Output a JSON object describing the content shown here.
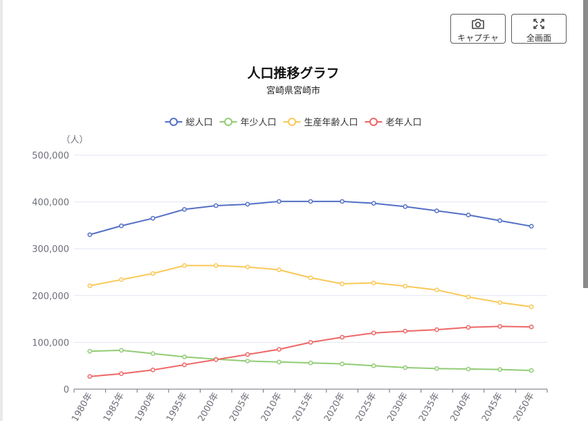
{
  "toolbar": {
    "capture_label": "キャプチャ",
    "fullscreen_label": "全画面"
  },
  "chart_data": {
    "type": "line",
    "title": "人口推移グラフ",
    "subtitle": "宮崎県宮崎市",
    "ylabel": "（人）",
    "xlabel": "",
    "ylim": [
      0,
      500000
    ],
    "yticks": [
      0,
      100000,
      200000,
      300000,
      400000,
      500000
    ],
    "ytick_labels": [
      "0",
      "100,000",
      "200,000",
      "300,000",
      "400,000",
      "500,000"
    ],
    "grid": true,
    "legend_position": "top-center",
    "categories": [
      "1980年",
      "1985年",
      "1990年",
      "1995年",
      "2000年",
      "2005年",
      "2010年",
      "2015年",
      "2020年",
      "2025年",
      "2030年",
      "2035年",
      "2040年",
      "2045年",
      "2050年"
    ],
    "series": [
      {
        "name": "総人口",
        "color": "#5470c6",
        "values": [
          330000,
          349000,
          365000,
          384000,
          392000,
          395000,
          401000,
          401000,
          401000,
          397000,
          390000,
          381000,
          372000,
          360000,
          348000
        ]
      },
      {
        "name": "年少人口",
        "color": "#91cc75",
        "values": [
          81000,
          83000,
          76000,
          69000,
          64000,
          60000,
          58000,
          56000,
          54000,
          50000,
          46000,
          44000,
          43000,
          42000,
          40000
        ]
      },
      {
        "name": "生産年齢人口",
        "color": "#fac858",
        "values": [
          221000,
          234000,
          247000,
          264000,
          264000,
          261000,
          255000,
          238000,
          225000,
          227000,
          220000,
          212000,
          197000,
          185000,
          176000
        ]
      },
      {
        "name": "老年人口",
        "color": "#ee6666",
        "values": [
          27000,
          33000,
          41000,
          52000,
          63000,
          74000,
          85000,
          100000,
          111000,
          120000,
          124000,
          127000,
          132000,
          134000,
          133000
        ]
      }
    ]
  }
}
